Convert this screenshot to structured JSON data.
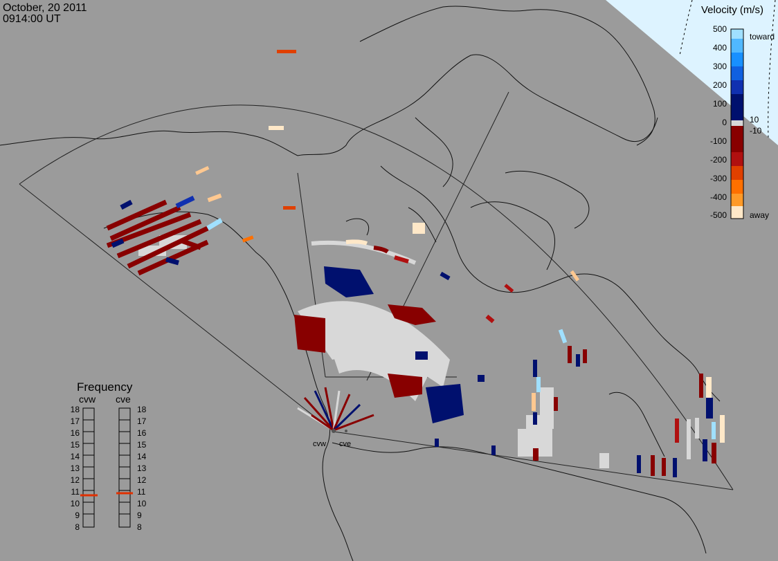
{
  "header": {
    "date": "October, 20 2011",
    "time": "0914:00 UT"
  },
  "colorbar": {
    "title": "Velocity (m/s)",
    "ticks": [
      "500",
      "400",
      "300",
      "200",
      "100",
      "0",
      "-100",
      "-200",
      "-300",
      "-400",
      "-500"
    ],
    "inner_labels": [
      "10",
      "-10"
    ],
    "toward_label": "toward",
    "away_label": "away",
    "colors": [
      "#ffe8c8",
      "#ffc890",
      "#ff9a28",
      "#ff7000",
      "#e04000",
      "#b01010",
      "#880000",
      "#d8d8d8",
      "#00106e",
      "#1030b0",
      "#1060e0",
      "#1890ff",
      "#50b8ff",
      "#a0e0ff"
    ]
  },
  "frequency_panel": {
    "title": "Frequency",
    "radars": [
      {
        "name": "cvw",
        "frequency_mhz": 10.8
      },
      {
        "name": "cve",
        "frequency_mhz": 10.8
      }
    ],
    "scale": [
      "18",
      "17",
      "16",
      "15",
      "14",
      "13",
      "12",
      "11",
      "10",
      "9",
      "8"
    ]
  },
  "radar_labels": [
    "cvw",
    "cve"
  ],
  "colors": {
    "background": "#9b9b9b",
    "daylight_region": "#ddf3ff",
    "ground_scatter": "#d8d8d8",
    "frequency_marker": "#e03000"
  }
}
